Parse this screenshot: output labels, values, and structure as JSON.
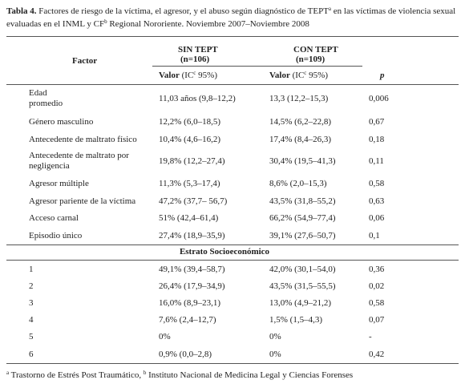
{
  "caption": {
    "label": "Tabla 4.",
    "parts": [
      {
        "text": "Factores de riesgo de la víctima, el agresor, y el abuso según diagnóstico de TEPT"
      },
      {
        "sup": "a"
      },
      {
        "text": " en las víctimas de violencia sexual evaluadas en el INML y CF"
      },
      {
        "sup": "b"
      },
      {
        "text": " Regional Nororiente. Noviembre 2007–Noviembre 2008"
      }
    ]
  },
  "header": {
    "factor": "Factor",
    "group_1": {
      "name": "SIN TEPT",
      "n": "(n=106)"
    },
    "group_2": {
      "name": "CON TEPT",
      "n": "(n=109)"
    },
    "value_col": {
      "bold": "Valor",
      "parts": [
        {
          "text": "(IC"
        },
        {
          "sup": "c"
        },
        {
          "text": " 95%)"
        }
      ]
    },
    "p": "p"
  },
  "table": {
    "rows": [
      [
        "Edad promedio",
        "11,03 años (9,8–12,2)",
        "13,3 (12,2–15,3)",
        "0,006"
      ],
      [
        "Género masculino",
        "12,2% (6,0–18,5)",
        "14,5% (6,2–22,8)",
        "0,67"
      ],
      [
        "Antecedente de maltrato físico",
        "10,4% (4,6–16,2)",
        "17,4% (8,4–26,3)",
        "0,18"
      ],
      [
        "Antecedente de maltrato por negligencia",
        "19,8% (12,2–27,4)",
        "30,4% (19,5–41,3)",
        "0,11"
      ],
      [
        "Agresor múltiple",
        "11,3% (5,3–17,4)",
        "8,6% (2,0–15,3)",
        "0,58"
      ],
      [
        "Agresor pariente de la víctima",
        "47,2% (37,7– 56,7)",
        "43,5% (31,8–55,2)",
        "0,63"
      ],
      [
        "Acceso carnal",
        "51% (42,4–61,4)",
        "66,2% (54,9–77,4)",
        "0,06"
      ],
      [
        "Episodio único",
        "27,4% (18,9–35,9)",
        "39,1% (27,6–50,7)",
        "0,1"
      ]
    ],
    "section": "Estrato Socioeconómico",
    "strata_rows": [
      [
        "1",
        "49,1% (39,4–58,7)",
        "42,0% (30,1–54,0)",
        "0,36"
      ],
      [
        "2",
        "26,4% (17,9–34,9)",
        "43,5% (31,5–55,5)",
        "0,02"
      ],
      [
        "3",
        "16,0% (8,9–23,1)",
        "13,0% (4,9–21,2)",
        "0,58"
      ],
      [
        "4",
        "7,6% (2,4–12,7)",
        "1,5% (1,5–4,3)",
        "0,07"
      ],
      [
        "5",
        "0%",
        "0%",
        "-"
      ],
      [
        "6",
        "0,9% (0,0–2,8)",
        "0%",
        "0,42"
      ]
    ]
  },
  "footnote": {
    "parts": [
      {
        "sup": "a"
      },
      {
        "text": " Trastorno de Estrés Post Traumático, "
      },
      {
        "sup": "b"
      },
      {
        "text": " Instituto Nacional de Medicina Legal y Ciencias Forenses"
      }
    ]
  }
}
